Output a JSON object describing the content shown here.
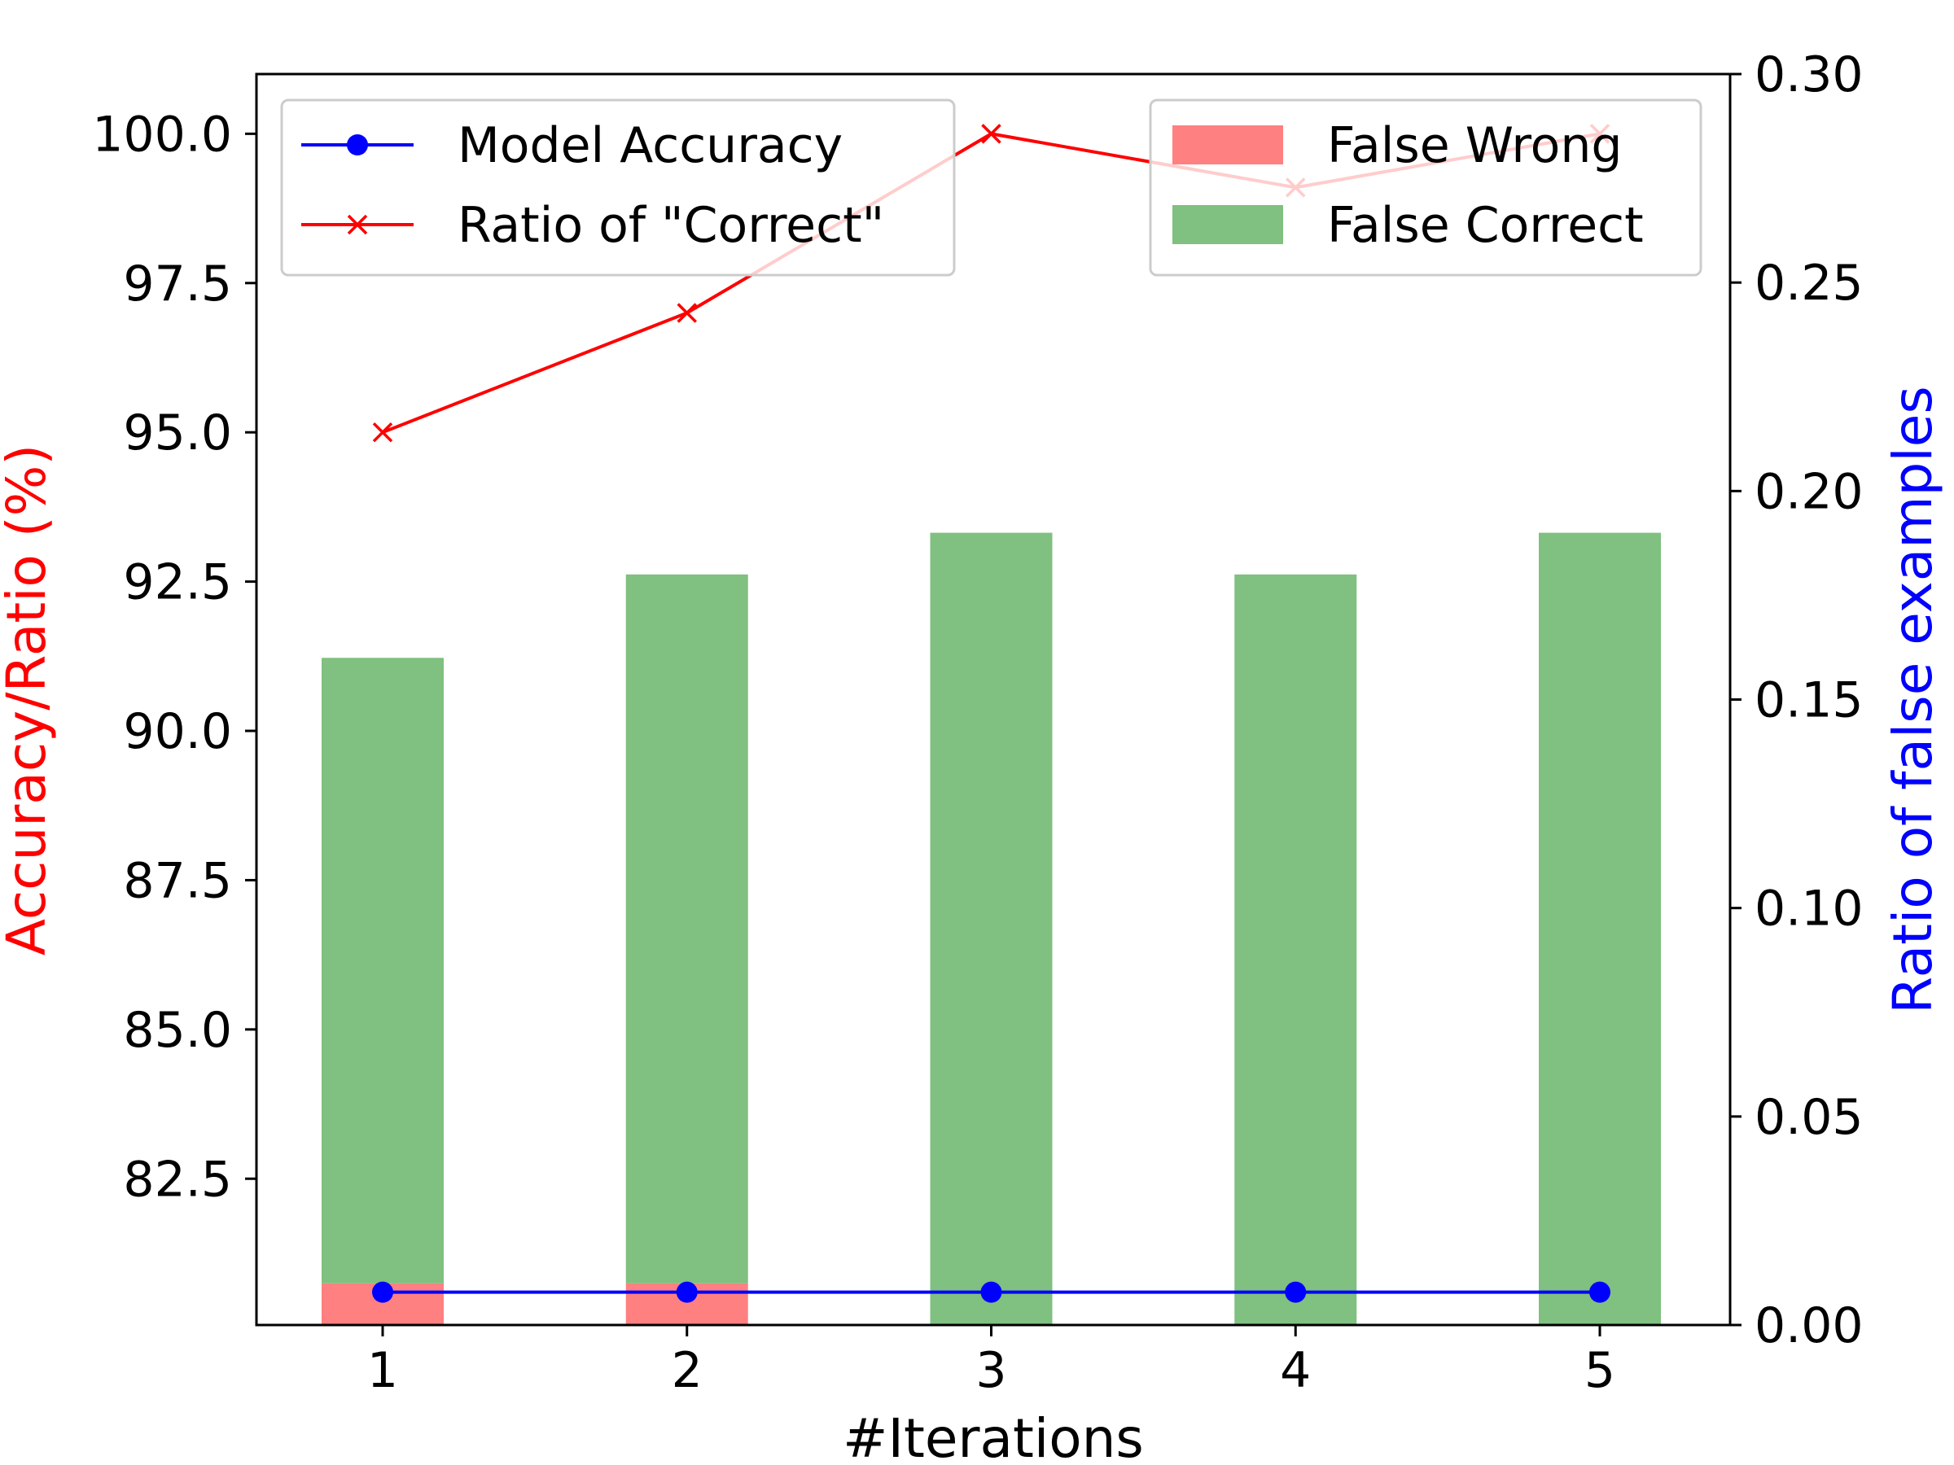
{
  "chart_data": {
    "type": "bar",
    "categories": [
      "1",
      "2",
      "3",
      "4",
      "5"
    ],
    "xlabel": "#Iterations",
    "ylabel_left": "Accuracy/Ratio (%)",
    "ylabel_right": "Ratio of false examples",
    "ylim_left": [
      80.05,
      101.0
    ],
    "ylim_right": [
      0.0,
      0.3
    ],
    "yticks_left": [
      "82.5",
      "85.0",
      "87.5",
      "90.0",
      "92.5",
      "95.0",
      "97.5",
      "100.0"
    ],
    "yticks_right": [
      "0.00",
      "0.05",
      "0.10",
      "0.15",
      "0.20",
      "0.25",
      "0.30"
    ],
    "bar_series": [
      {
        "name": "False Wrong",
        "axis": "right",
        "color": "#ff8080",
        "values": [
          0.01,
          0.01,
          0.0,
          0.0,
          0.0
        ]
      },
      {
        "name": "False Correct",
        "axis": "right",
        "color": "#80c080",
        "stacked_on": "False Wrong",
        "values": [
          0.15,
          0.17,
          0.19,
          0.18,
          0.19
        ]
      }
    ],
    "line_series": [
      {
        "name": "Model Accuracy",
        "axis": "left",
        "color": "#0000ff",
        "marker": "circle",
        "values": [
          80.6,
          80.6,
          80.6,
          80.6,
          80.6
        ]
      },
      {
        "name": "Ratio of \"Correct\"",
        "axis": "left",
        "color": "#ff0000",
        "marker": "x",
        "values": [
          95.0,
          97.0,
          100.0,
          99.1,
          100.0
        ]
      }
    ],
    "legends": [
      {
        "placement": "upper-left",
        "entries": [
          "Model Accuracy",
          "Ratio of \"Correct\""
        ]
      },
      {
        "placement": "upper-right",
        "entries": [
          "False Wrong",
          "False Correct"
        ]
      }
    ],
    "grid": false
  }
}
